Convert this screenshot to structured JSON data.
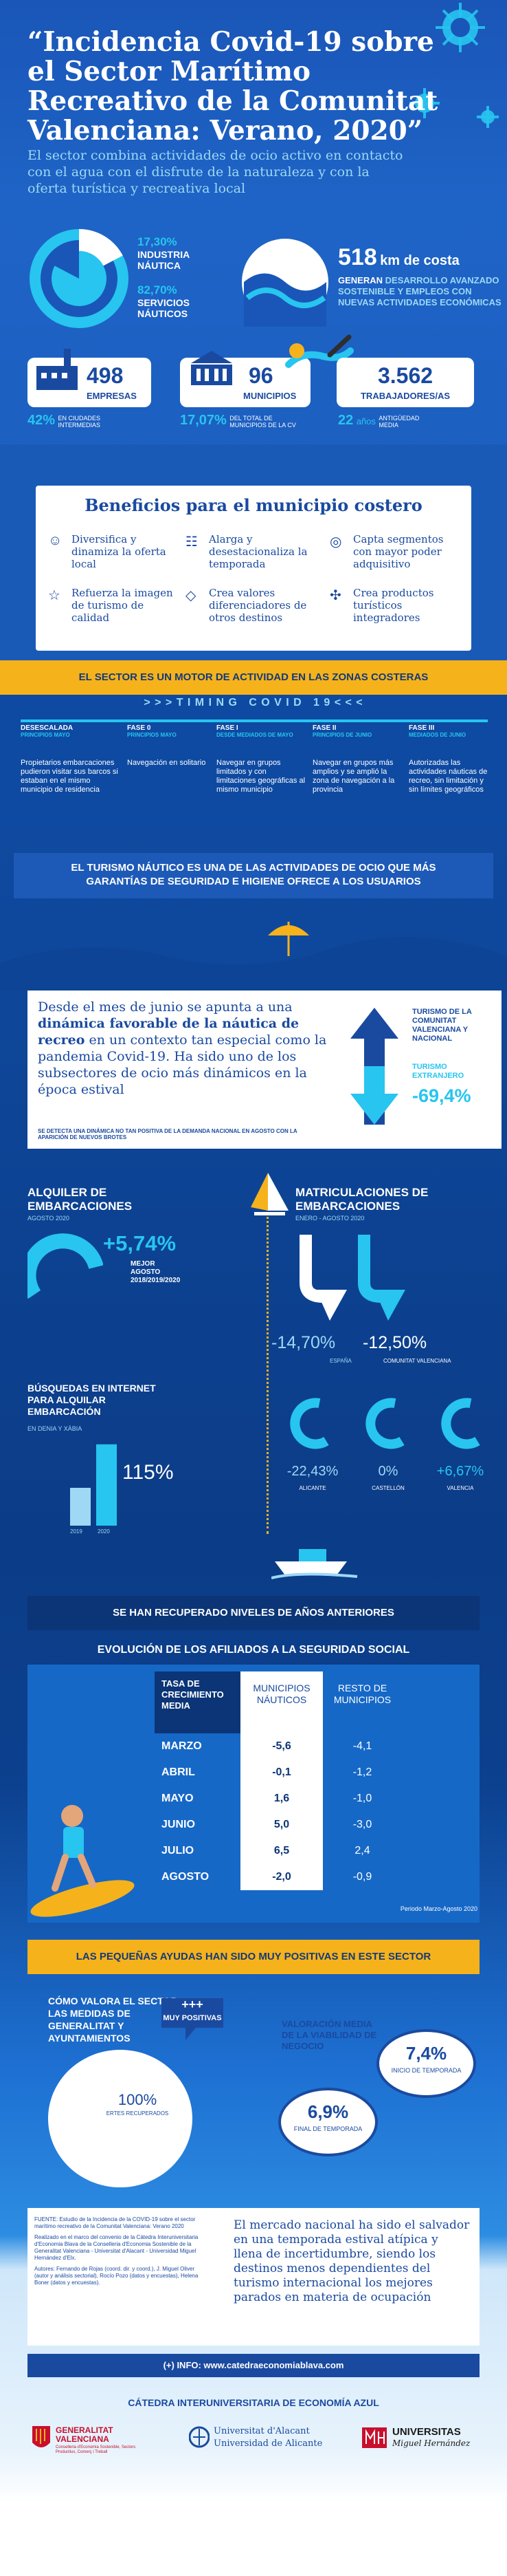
{
  "header": {
    "title": "“Incidencia Covid-19 sobre el Sector Marítimo Recreativo de la Comunitat Valenciana: Verano, 2020”",
    "subtitle": "El sector combina actividades de ocio activo en contacto con el agua con el disfrute de la naturaleza y con la oferta turística y recreativa local"
  },
  "pie": {
    "industria_pct": "17,30%",
    "industria_label": "INDUSTRIA NÁUTICA",
    "servicios_pct": "82,70%",
    "servicios_label": "SERVICIOS NÁUTICOS",
    "industria_fraction": 0.173
  },
  "coast": {
    "km": "518",
    "km_unit": "km de costa",
    "text_bold": "GENERAN",
    "text": "DESARROLLO AVANZADO SOSTENIBLE Y EMPLEOS CON NUEVAS ACTIVIDADES ECONÓMICAS"
  },
  "stats": {
    "empresas_num": "498",
    "empresas_label": "EMPRESAS",
    "empresas_pct": "42%",
    "empresas_note": "EN CIUDADES INTERMEDIAS",
    "municipios_num": "96",
    "municipios_label": "MUNICIPIOS",
    "municipios_pct": "17,07%",
    "municipios_note": "DEL TOTAL DE MUNICIPIOS DE LA CV",
    "trab_num": "3.562",
    "trab_label": "TRABAJADORES/AS",
    "trab_age": "22",
    "trab_age_unit": "años",
    "trab_note": "ANTIGÜEDAD MEDIA"
  },
  "beneficios": {
    "title": "Beneficios para el municipio costero",
    "items": [
      "Diversifica y dinamiza la oferta local",
      "Alarga y desestacionaliza la temporada",
      "Capta segmentos con mayor poder adquisitivo",
      "Refuerza la imagen de turismo de calidad",
      "Crea valores diferenciadores de otros destinos",
      "Crea productos turísticos integradores"
    ]
  },
  "banner1": "EL SECTOR ES UN MOTOR DE ACTIVIDAD EN LAS ZONAS COSTERAS",
  "timing": {
    "title": "> > > T I M I N G   C O V I D   1 9 < < <",
    "phases": [
      {
        "head": "DESESCALADA",
        "sub": "PRINCIPIOS MAYO",
        "text": "Propietarios embarcaciones pudieron visitar sus barcos si estaban en el mismo municipio de residencia"
      },
      {
        "head": "FASE 0",
        "sub": "PRINCIPIOS MAYO",
        "text": "Navegación en solitario"
      },
      {
        "head": "FASE I",
        "sub": "DESDE MEDIADOS DE MAYO",
        "text": "Navegar en grupos limitados y con limitaciones geográficas al mismo municipio"
      },
      {
        "head": "FASE II",
        "sub": "PRINCIPIOS DE JUNIO",
        "text": "Navegar en grupos más amplios y se amplió la zona de navegación a la provincia"
      },
      {
        "head": "FASE III",
        "sub": "MEDIADOS DE JUNIO",
        "text": "Autorizadas las actividades náuticas de recreo, sin limitación y sin límites geográficos"
      }
    ]
  },
  "banner2": "EL TURISMO NÁUTICO ES UNA DE LAS ACTIVIDADES DE OCIO QUE MÁS GARANTÍAS DE SEGURIDAD E HIGIENE OFRECE A LOS USUARIOS",
  "junio": {
    "text_a": "Desde el mes de junio se apunta a una ",
    "text_b": "dinámica favorable de la náutica de recreo",
    "text_c": " en un contexto tan especial como la pandemia Covid-19. Ha sido uno de los subsectores de ocio más dinámicos en la época estival",
    "note": "SE DETECTA UNA DINÁMICA NO TAN POSITIVA DE LA DEMANDA NACIONAL EN AGOSTO CON LA APARICIÓN DE NUEVOS BROTES",
    "turismo_cv_label": "TURISMO DE LA COMUNITAT VALENCIANA Y NACIONAL",
    "turismo_ext_label": "TURISMO EXTRANJERO",
    "turismo_ext_value": "-69,4%"
  },
  "alquiler": {
    "title": "ALQUILER DE EMBARCACIONES",
    "period": "AGOSTO 2020",
    "value": "+5,74%",
    "note": "MEJOR AGOSTO 2018/2019/2020"
  },
  "matriculaciones": {
    "title": "MATRICULACIONES DE EMBARCACIONES",
    "period": "ENERO - AGOSTO 2020",
    "espana_value": "-14,70%",
    "espana_label": "ESPAÑA",
    "cv_value": "-12,50%",
    "cv_label": "COMUNITAT VALENCIANA"
  },
  "busquedas": {
    "title": "BÚSQUEDAS EN INTERNET PARA ALQUILAR EMBARCACIÓN",
    "period": "EN DENIA Y XÀBIA",
    "value": "115%",
    "year1": "2019",
    "year2": "2020"
  },
  "provincias": [
    {
      "value": "-22,43%",
      "label": "ALICANTE"
    },
    {
      "value": "0%",
      "label": "CASTELLÓN"
    },
    {
      "value": "+6,67%",
      "label": "VALENCIA"
    }
  ],
  "banner3": "SE HAN RECUPERADO NIVELES DE AÑOS ANTERIORES",
  "afiliados": {
    "title": "EVOLUCIÓN DE LOS AFILIADOS A LA SEGURIDAD SOCIAL",
    "col0": "TASA DE CRECIMIENTO MEDIA",
    "col1": "MUNICIPIOS NÁUTICOS",
    "col2": "RESTO DE MUNICIPIOS",
    "rows": [
      {
        "mes": "MARZO",
        "nauticos": "-5,6",
        "resto": "-4,1"
      },
      {
        "mes": "ABRIL",
        "nauticos": "-0,1",
        "resto": "-1,2"
      },
      {
        "mes": "MAYO",
        "nauticos": "1,6",
        "resto": "-1,0"
      },
      {
        "mes": "JUNIO",
        "nauticos": "5,0",
        "resto": "-3,0"
      },
      {
        "mes": "JULIO",
        "nauticos": "6,5",
        "resto": "2,4"
      },
      {
        "mes": "AGOSTO",
        "nauticos": "-2,0",
        "resto": "-0,9"
      }
    ],
    "period": "Periodo Marzo-Agosto 2020"
  },
  "banner4": "LAS PEQUEÑAS AYUDAS HAN SIDO MUY POSITIVAS EN ESTE SECTOR",
  "ayudas": {
    "question": "CÓMO VALORA EL SECTOR LAS MEDIDAS DE GENERALITAT Y AYUNTAMIENTOS",
    "plus": "+++",
    "muy_positivas": "MUY POSITIVAS",
    "pct": "100%",
    "pct_label": "ERTES RECUPERADOS",
    "valoracion": "VALORACIÓN MEDIA DE LA VIABILIDAD DE NEGOCIO",
    "inicio_value": "7,4%",
    "inicio_label": "INICIO DE TEMPORADA",
    "final_value": "6,9%",
    "final_label": "FINAL DE TEMPORADA"
  },
  "fuente": {
    "text1": "FUENTE: Estudio de la Incidencia de la COVID-19 sobre el sector marítimo recreativo de la Comunitat Valenciana: Verano 2020",
    "text2": "Realizado en el marco del convenio de la Cátedra Interuniversitaria d'Economia Blava de la Conselleria d'Economia Sostenible de la Generalitat Valenciana - Universitat d'Alacant - Universidad Miguel Hernández d'Elx.",
    "text3": "Autores: Fernando de Rojas (coord. dir. y coord.), J. Miguel Oliver (autor y análisis sectorial), Rocío Pozo (datos y encuestas), Helena Boner (datos y encuestas).",
    "nacional": "El mercado nacional ha sido el salvador en una temporada estival atípica y llena de incertidumbre, siendo los destinos menos dependientes del turismo internacional los mejores parados en materia de ocupación"
  },
  "info": "(+) INFO: www.catedraeconomiablava.com",
  "footer": {
    "catedra": "CÁTEDRA INTERUNIVERSITARIA DE ECONOMÍA AZUL",
    "gva_name": "GENERALITAT VALENCIANA",
    "gva_sub": "Conselleria d'Economia Sostenible, Sectors Productius, Comerç i Treball",
    "ua_1": "Universitat d'Alacant",
    "ua_2": "Universidad de Alicante",
    "umh_1": "UNIVERSITAS",
    "umh_2": "Miguel Hernández"
  },
  "colors": {
    "accent": "#27c5f0",
    "yellow": "#f6b21b",
    "navy": "#0c3f8a",
    "red": "#c8102e"
  }
}
